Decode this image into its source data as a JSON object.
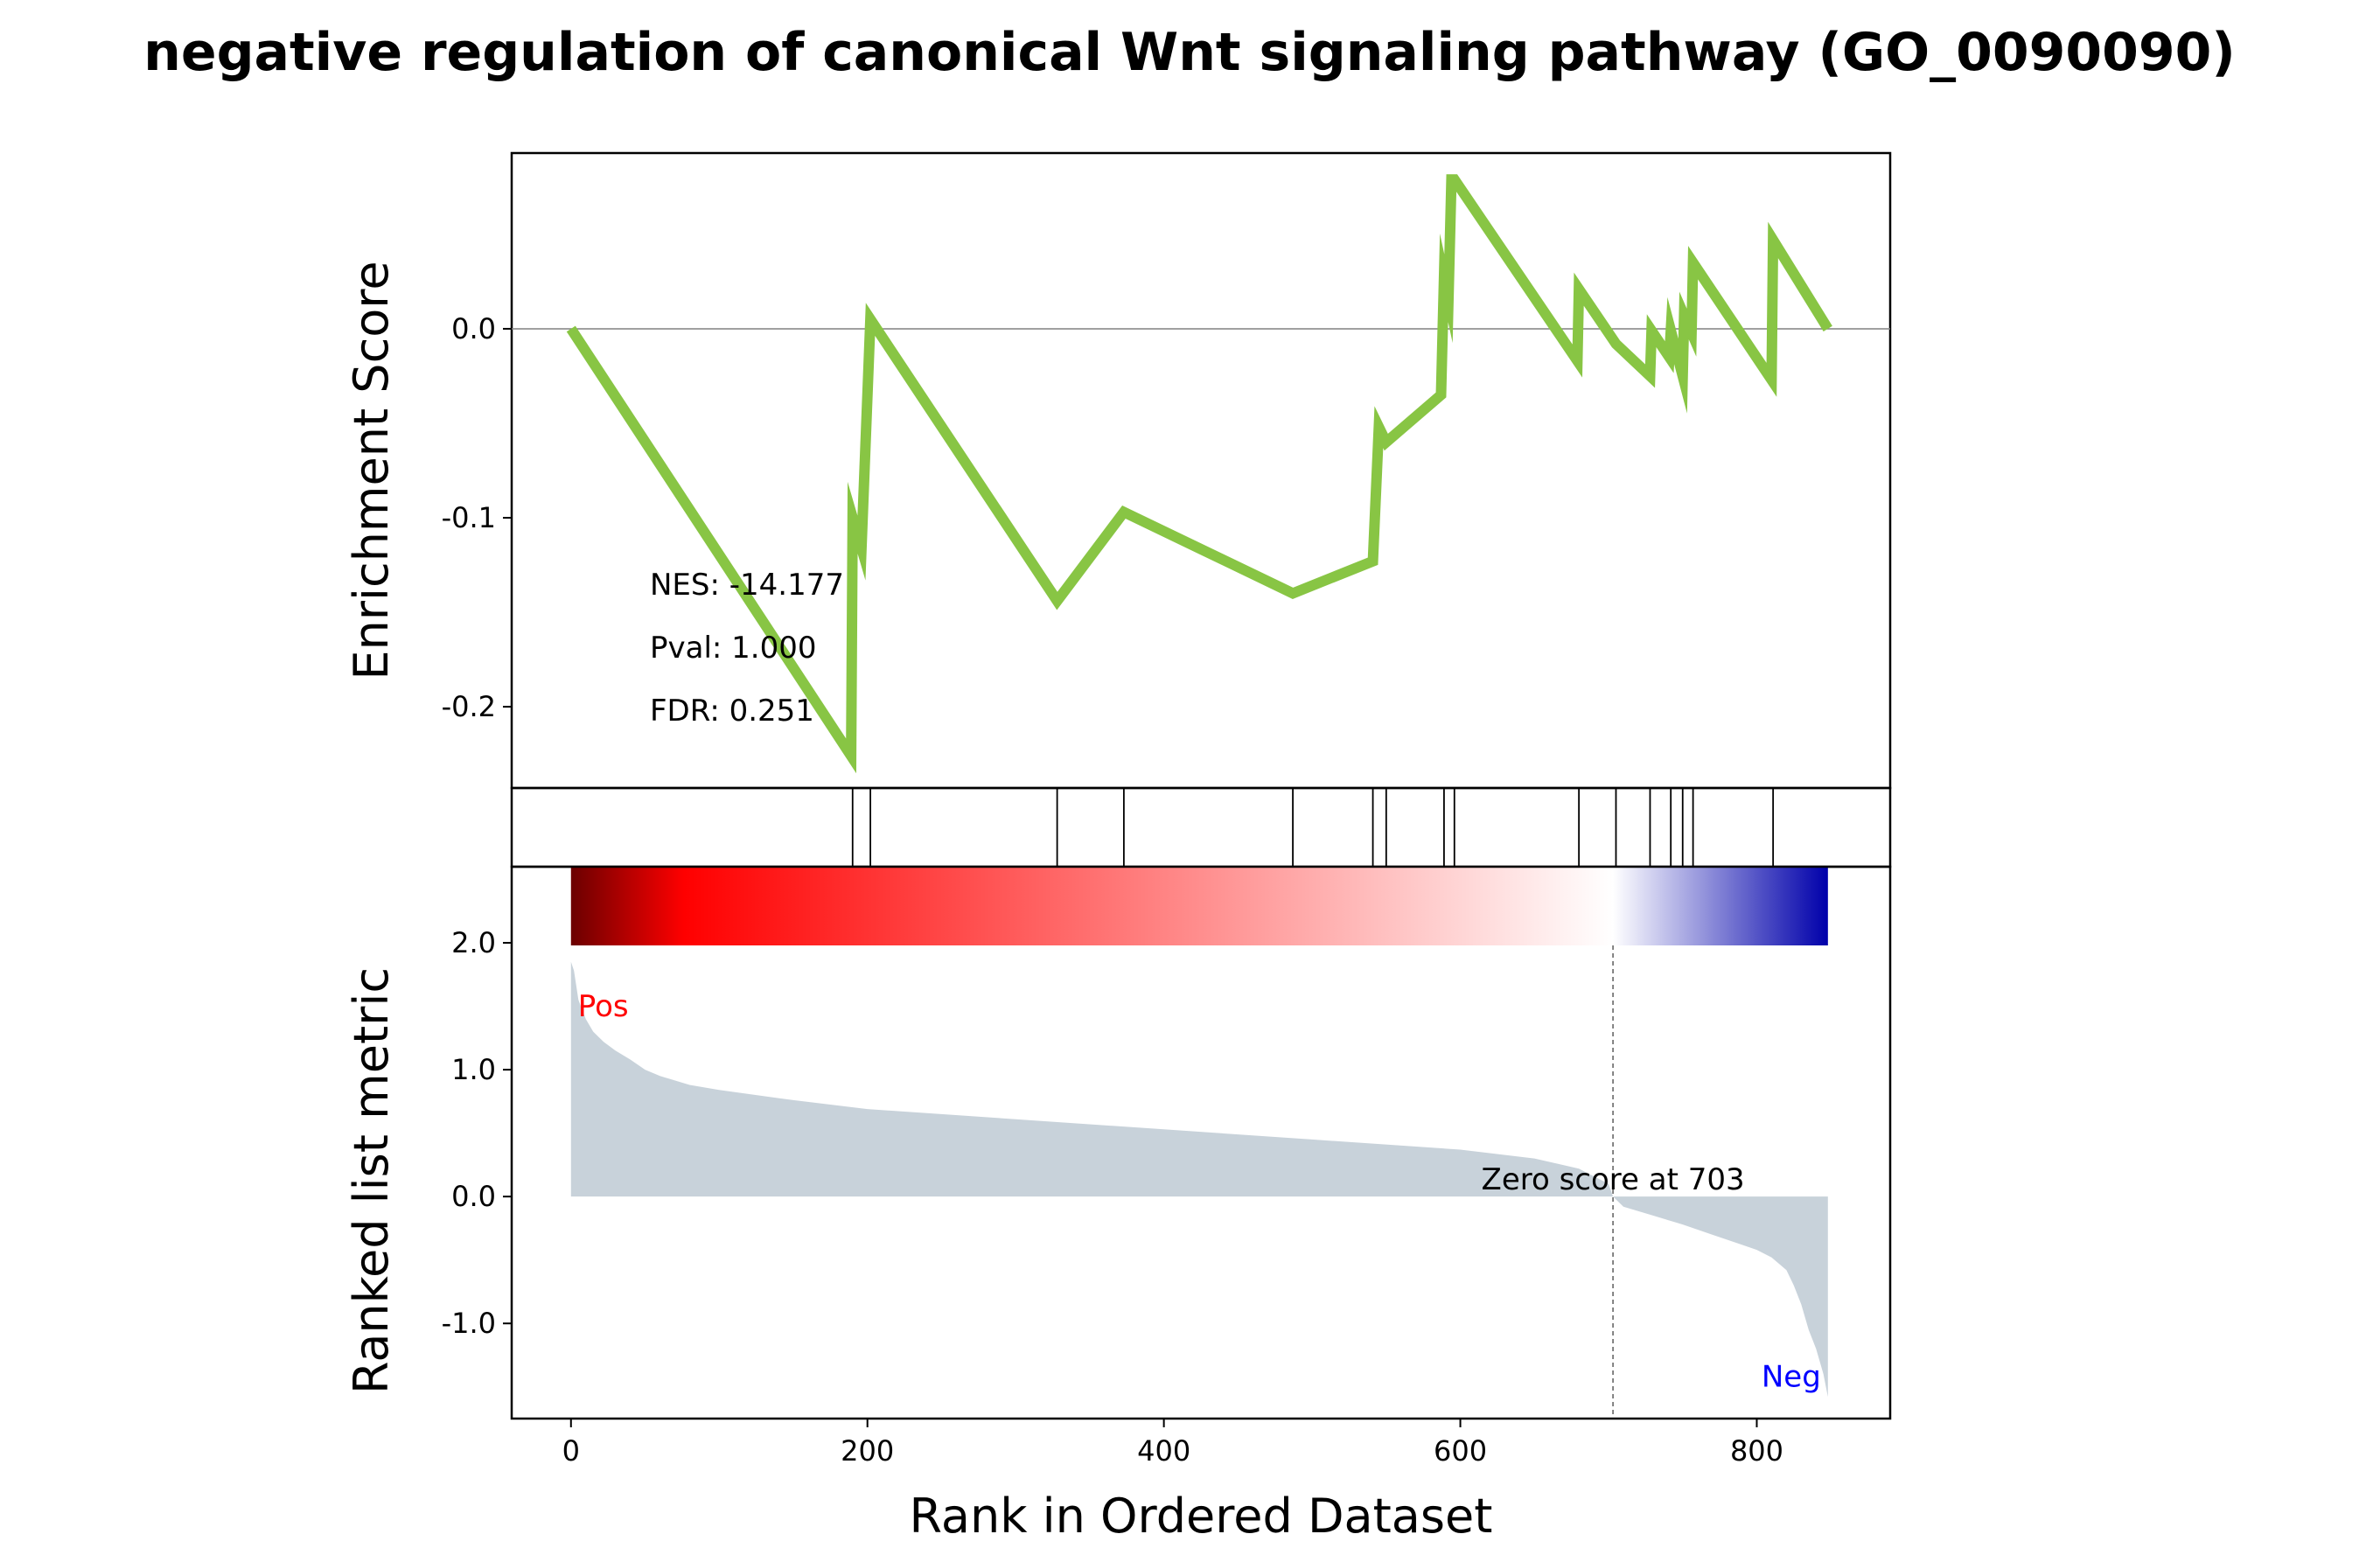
{
  "chart_data": {
    "type": "line",
    "title": "negative regulation of canonical Wnt signaling pathway (GO_0090090)",
    "xlabel": "Rank in Ordered Dataset",
    "xlim": [
      -40,
      890
    ],
    "xticks": [
      0,
      200,
      400,
      600,
      800
    ],
    "enrichment": {
      "ylabel": "Enrichment Score",
      "ylim": [
        -0.243,
        0.093
      ],
      "yticks": [
        0.0,
        -0.1,
        -0.2
      ],
      "ytick_labels": [
        "0.0",
        "-0.1",
        "-0.2"
      ],
      "line_color": "#88c544",
      "zero_line_color": "#808080",
      "x": [
        0,
        189,
        190,
        196,
        202,
        328,
        373,
        487,
        541,
        545,
        550,
        587,
        589,
        592,
        594,
        596,
        679,
        680,
        705,
        728,
        729,
        741,
        742,
        750,
        751,
        756,
        757,
        810,
        811,
        848
      ],
      "y": [
        0.0,
        -0.226,
        -0.1,
        -0.116,
        0.005,
        -0.144,
        -0.097,
        -0.14,
        -0.123,
        -0.052,
        -0.06,
        -0.035,
        0.027,
        0.016,
        0.079,
        0.079,
        -0.017,
        0.021,
        -0.008,
        -0.025,
        -0.001,
        -0.015,
        -0.001,
        -0.025,
        0.007,
        -0.002,
        0.035,
        -0.027,
        0.047,
        0.0
      ],
      "annotations": {
        "nes": "NES: -14.177",
        "pval": "Pval: 1.000",
        "fdr": "FDR: 0.251"
      }
    },
    "hits": {
      "positions": [
        190,
        202,
        328,
        373,
        487,
        541,
        550,
        589,
        596,
        680,
        705,
        728,
        742,
        750,
        757,
        811
      ]
    },
    "ranked_metric": {
      "ylabel": "Ranked list metric",
      "ylim": [
        -1.75,
        2.6
      ],
      "yticks": [
        2.0,
        1.0,
        0.0,
        -1.0
      ],
      "ytick_labels": [
        "2.0",
        "1.0",
        "0.0",
        "-1.0"
      ],
      "fill_color": "#c8d2da",
      "profile_x": [
        0,
        2,
        5,
        10,
        15,
        22,
        30,
        40,
        50,
        60,
        80,
        100,
        150,
        200,
        300,
        400,
        500,
        600,
        650,
        680,
        700,
        703,
        710,
        730,
        750,
        770,
        790,
        800,
        810,
        820,
        825,
        830,
        835,
        840,
        845,
        848
      ],
      "profile_y": [
        1.85,
        1.78,
        1.55,
        1.4,
        1.3,
        1.22,
        1.15,
        1.08,
        1.0,
        0.95,
        0.88,
        0.84,
        0.76,
        0.69,
        0.61,
        0.53,
        0.45,
        0.37,
        0.3,
        0.22,
        0.1,
        0.0,
        -0.08,
        -0.15,
        -0.22,
        -0.3,
        -0.38,
        -0.42,
        -0.48,
        -0.58,
        -0.7,
        -0.85,
        -1.05,
        -1.2,
        -1.4,
        -1.58
      ],
      "zero_cross": 703,
      "zero_label": "Zero score at 703",
      "pos_label": "Pos",
      "neg_label": "Neg",
      "pos_color": "#ff0000",
      "neg_color": "#0000ff"
    },
    "colorbar": {
      "colors": [
        "#6b0000",
        "#ff0000",
        "#ffffff",
        "#0000aa"
      ]
    }
  }
}
